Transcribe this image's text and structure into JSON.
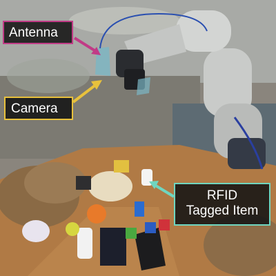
{
  "labels": {
    "antenna": "Antenna",
    "camera": "Camera",
    "rfid_line1": "RFID",
    "rfid_line2": "Tagged Item"
  },
  "colors": {
    "antenna_accent": "#c13b86",
    "camera_accent": "#e8c13c",
    "rfid_accent": "#6fd6c0"
  }
}
